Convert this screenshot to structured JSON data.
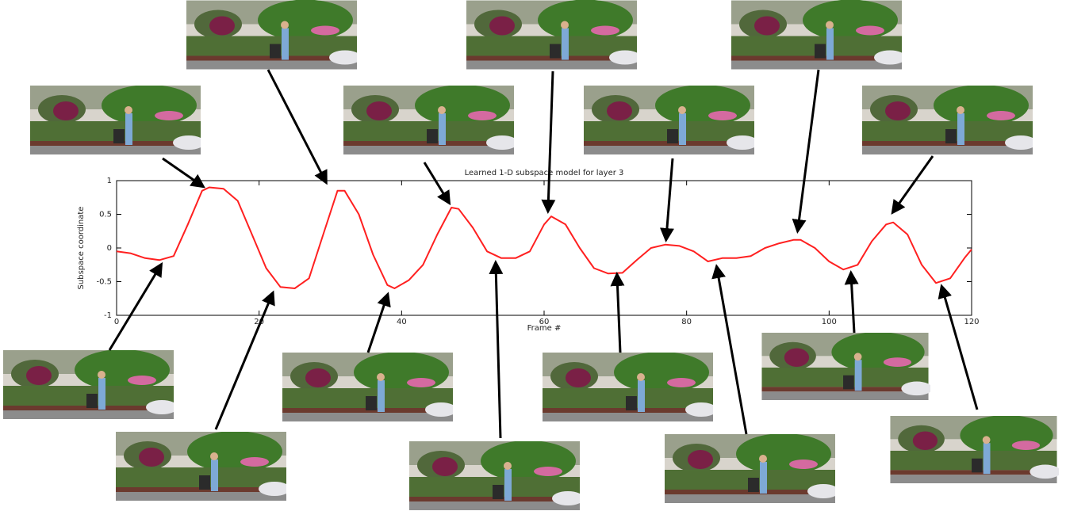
{
  "chart_data": {
    "type": "line",
    "title": "Learned 1-D subspace model for layer 3",
    "xlabel": "Frame #",
    "ylabel": "Subspace coordinate",
    "color": "#ff2020",
    "x": [
      0,
      2,
      4,
      6,
      8,
      10,
      12,
      13,
      15,
      17,
      19,
      21,
      23,
      25,
      27,
      29,
      31,
      32,
      34,
      36,
      38,
      39,
      41,
      43,
      45,
      47,
      48,
      50,
      52,
      54,
      56,
      58,
      60,
      61,
      63,
      65,
      67,
      69,
      71,
      73,
      75,
      77,
      79,
      81,
      83,
      85,
      87,
      89,
      91,
      93,
      95,
      96,
      98,
      100,
      102,
      104,
      106,
      108,
      109,
      111,
      113,
      115,
      117,
      119,
      120
    ],
    "values": [
      -0.05,
      -0.08,
      -0.15,
      -0.18,
      -0.12,
      0.35,
      0.85,
      0.9,
      0.88,
      0.7,
      0.2,
      -0.3,
      -0.58,
      -0.6,
      -0.45,
      0.2,
      0.85,
      0.85,
      0.5,
      -0.1,
      -0.55,
      -0.6,
      -0.48,
      -0.25,
      0.2,
      0.6,
      0.58,
      0.3,
      -0.05,
      -0.15,
      -0.15,
      -0.05,
      0.35,
      0.47,
      0.35,
      0.0,
      -0.3,
      -0.38,
      -0.37,
      -0.18,
      0.0,
      0.05,
      0.03,
      -0.05,
      -0.2,
      -0.15,
      -0.15,
      -0.12,
      0.0,
      0.07,
      0.12,
      0.12,
      0.0,
      -0.2,
      -0.32,
      -0.25,
      0.1,
      0.35,
      0.38,
      0.2,
      -0.25,
      -0.52,
      -0.45,
      -0.15,
      -0.02
    ],
    "xlim": [
      0,
      120
    ],
    "xticks": [
      0,
      20,
      40,
      60,
      80,
      100,
      120
    ],
    "ylim": [
      -1,
      1
    ],
    "yticks": [
      -1,
      -0.5,
      0,
      0.5,
      1
    ]
  }
}
